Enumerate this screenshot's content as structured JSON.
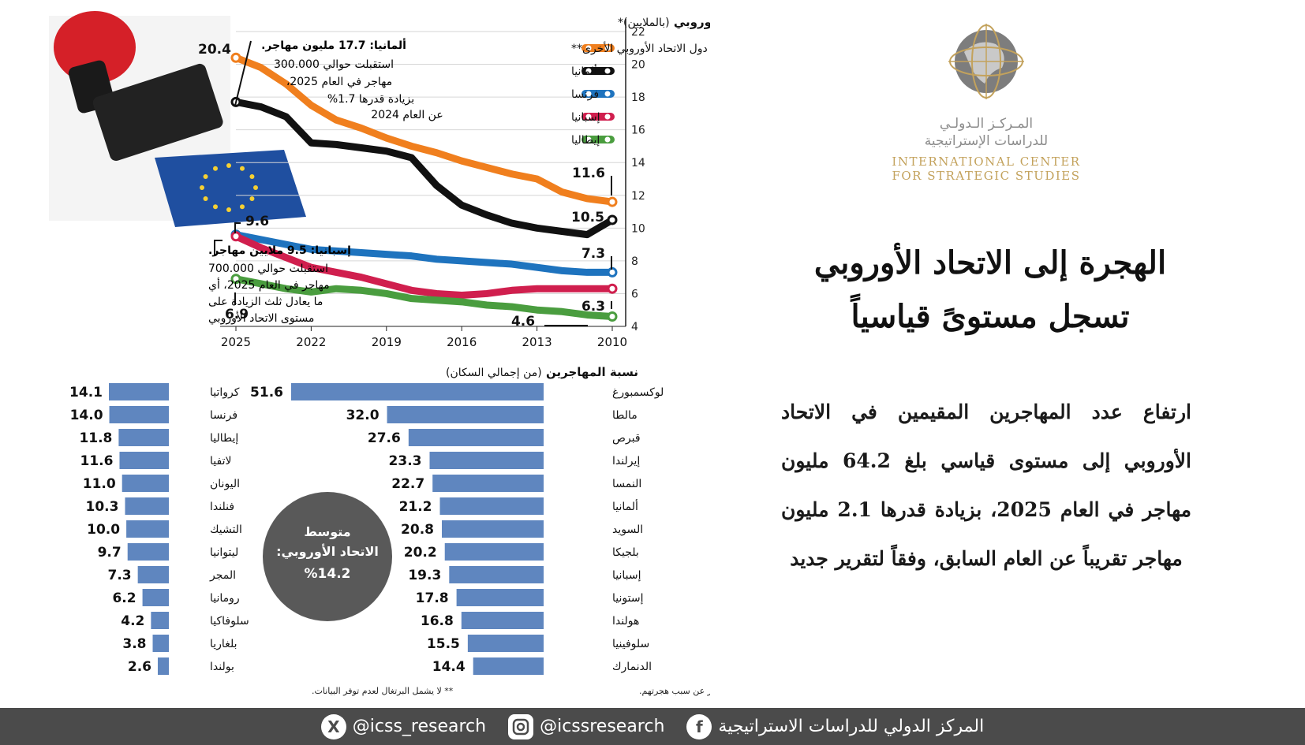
{
  "logo": {
    "ar_line1": "المـركـز الـدولـي",
    "ar_line2": "للدراسات الإستراتيجية",
    "en_line1": "INTERNATIONAL CENTER",
    "en_line2": "FOR STRATEGIC STUDIES",
    "colors": {
      "gold": "#c3a25c",
      "grey": "#8c8c8c"
    }
  },
  "headline": {
    "line1": "الهجرة إلى الاتحاد الأوروبي",
    "line2": "تسجل مستوىً قياسياً"
  },
  "subtext": "ارتفاع عدد المهاجرين المقيمين في الاتحاد الأوروبي إلى مستوى قياسي بلغ 64.2 مليون مهاجر في العام 2025، بزيادة قدرها 2.1 مليون مهاجر تقريباً عن العام السابق، وفقاً لتقرير جديد",
  "footer": {
    "org_name": "المركز الدولي للدراسات الاستراتيجية",
    "instagram": "@icssresearch",
    "x_handle": "@icss_research",
    "facebook_glyph": "f",
    "x_glyph": "X"
  },
  "chart_data": [
    {
      "type": "line",
      "title": "المهاجرون في أكبر الدول المضيفة في الاتحاد الأوروبي",
      "title_note": "(بالملايين)*",
      "x": [
        2010,
        2011,
        2012,
        2013,
        2014,
        2015,
        2016,
        2017,
        2018,
        2019,
        2020,
        2021,
        2022,
        2023,
        2024,
        2025
      ],
      "x_ticks": [
        2010,
        2013,
        2016,
        2019,
        2022,
        2025
      ],
      "x_reversed": true,
      "ylim": [
        4,
        22
      ],
      "y_ticks": [
        4,
        6,
        8,
        10,
        12,
        14,
        16,
        18,
        20,
        22
      ],
      "series": [
        {
          "name": "دول الاتحاد الأوروبي الأخرى**",
          "color": "#f07f1e",
          "values": [
            11.6,
            11.8,
            12.2,
            13.0,
            13.3,
            13.7,
            14.1,
            14.6,
            15.0,
            15.5,
            16.1,
            16.6,
            17.5,
            18.8,
            19.8,
            20.4
          ]
        },
        {
          "name": "ألمانيا",
          "color": "#111111",
          "values": [
            10.5,
            9.6,
            9.8,
            10.0,
            10.3,
            10.8,
            11.4,
            12.6,
            14.3,
            14.7,
            14.9,
            15.1,
            15.2,
            16.8,
            17.4,
            17.7
          ]
        },
        {
          "name": "فرنسا",
          "color": "#1e73be",
          "values": [
            7.3,
            7.3,
            7.4,
            7.6,
            7.8,
            7.9,
            8.0,
            8.1,
            8.3,
            8.4,
            8.5,
            8.6,
            8.7,
            9.0,
            9.3,
            9.6
          ]
        },
        {
          "name": "إسبانيا",
          "color": "#d01f4e",
          "values": [
            6.3,
            6.3,
            6.3,
            6.3,
            6.2,
            6.0,
            5.9,
            6.0,
            6.2,
            6.6,
            7.0,
            7.3,
            7.6,
            8.2,
            8.8,
            9.5
          ]
        },
        {
          "name": "إيطاليا",
          "color": "#4a9d3f",
          "values": [
            4.6,
            4.7,
            4.9,
            5.0,
            5.2,
            5.3,
            5.5,
            5.6,
            5.7,
            6.0,
            6.2,
            6.3,
            6.1,
            6.3,
            6.6,
            6.9
          ]
        }
      ],
      "value_labels": {
        "other_2025": "20.4",
        "other_2010": "11.6",
        "germany_2010": "10.5",
        "france_2025": "9.6",
        "france_2010": "7.3",
        "spain_2010": "6.3",
        "italy_2025": "6.9",
        "italy_2010": "4.6"
      },
      "annotations": {
        "germany_title": "ألمانيا: 17.7 مليون مهاجر.",
        "germany_lines": [
          "استقبلت حوالي 300.000",
          "مهاجر في العام 2025،",
          "بزيادة قدرها 1.7%",
          "عن العام 2024"
        ],
        "spain_title": "إسبانيا: 9.5 ملايين مهاجر.",
        "spain_lines": [
          "استقبلت حوالي 700.000",
          "مهاجر في العام 2025، أي",
          "ما يعادل ثلث الزيادة على",
          "مستوى الاتحاد الأوروبي"
        ]
      }
    },
    {
      "type": "bar",
      "orientation": "horizontal",
      "title": "نسبة المهاجرين",
      "title_note": "(من إجمالي السكان)",
      "categories": [
        "لوكسمبورغ",
        "مالطا",
        "قبرص",
        "إيرلندا",
        "النمسا",
        "ألمانيا",
        "السويد",
        "بلجيكا",
        "إسبانيا",
        "إستونيا",
        "هولندا",
        "سلوفينيا",
        "الدنمارك"
      ],
      "values": [
        51.6,
        32.0,
        27.6,
        23.3,
        22.7,
        21.2,
        20.8,
        20.2,
        19.3,
        17.8,
        16.8,
        15.5,
        14.4
      ],
      "labels": [
        "51.6",
        "32.0",
        "27.6",
        "23.3",
        "22.7",
        "21.2",
        "20.8",
        "20.2",
        "19.3",
        "17.8",
        "16.8",
        "15.5",
        "14.4"
      ],
      "color": "#5f86bf"
    },
    {
      "type": "bar",
      "orientation": "horizontal",
      "categories": [
        "كرواتيا",
        "فرنسا",
        "إيطاليا",
        "لاتفيا",
        "اليونان",
        "فنلندا",
        "التشيك",
        "ليتوانيا",
        "المجر",
        "رومانيا",
        "سلوفاكيا",
        "بلغاريا",
        "بولندا"
      ],
      "values": [
        14.1,
        14.0,
        11.8,
        11.6,
        11.0,
        10.3,
        10.0,
        9.7,
        7.3,
        6.2,
        4.2,
        3.8,
        2.6
      ],
      "labels": [
        "14.1",
        "14.0",
        "11.8",
        "11.6",
        "11.0",
        "10.3",
        "10.0",
        "9.7",
        "7.3",
        "6.2",
        "4.2",
        "3.8",
        "2.6"
      ],
      "color": "#5f86bf"
    }
  ],
  "eu_average": {
    "line1": "متوسط",
    "line2": "الاتحاد الأوروبي:",
    "value": "%14.2"
  },
  "footnotes": {
    "note1": "* يُعرَّف المهاجرون بأنهم الأفراد المولودون في الخارج، بغض النظر عن سبب هجرتهم.",
    "note2": "** لا يشمل البرتغال لعدم توفر البيانات."
  }
}
